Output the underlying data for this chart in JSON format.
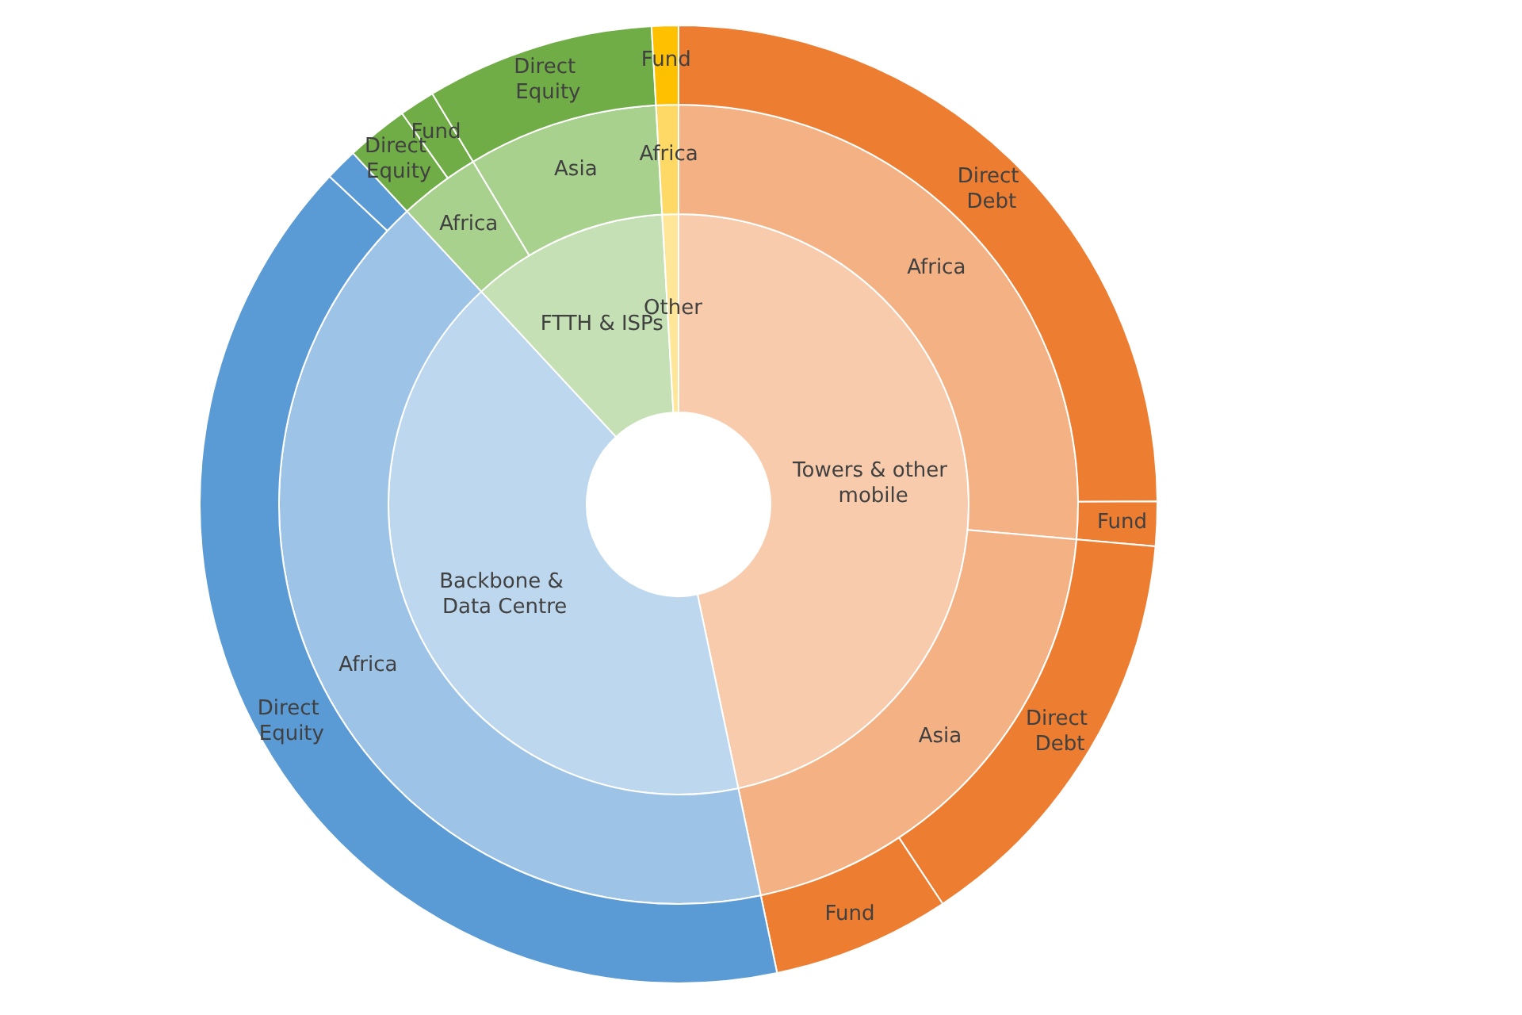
{
  "chart_data": [
    {
      "type": "donut",
      "categories": [
        "Towers & other mobile",
        "Backbone & Data Centre",
        "FTTH & ISPs",
        "Other"
      ],
      "values": [
        46.7,
        41.4,
        11.0,
        0.9
      ],
      "colors": [
        "#f8cbad",
        "#bdd7ee",
        "#c5e0b4",
        "#ffe699"
      ]
    },
    {
      "type": "donut",
      "categories": [
        "Africa",
        "Asia",
        "Africa",
        "Africa",
        "Asia",
        "Africa"
      ],
      "values": [
        26.4,
        20.3,
        41.4,
        3.3,
        7.7,
        0.9
      ],
      "colors": [
        "#f4b183",
        "#f4b183",
        "#9dc3e6",
        "#a9d18e",
        "#a9d18e",
        "#ffd966"
      ]
    },
    {
      "type": "donut",
      "categories": [
        "Direct Debt",
        "Fund",
        "Direct Debt",
        "Fund",
        "Direct Equity",
        null,
        "Direct Equity",
        "Fund",
        "Direct Equity",
        "Fund"
      ],
      "values": [
        24.9,
        1.5,
        14.3,
        6.0,
        40.3,
        1.1,
        2.1,
        1.2,
        7.7,
        0.9
      ],
      "colors": [
        "#ed7d31",
        "#ed7d31",
        "#ed7d31",
        "#ed7d31",
        "#5b9bd5",
        "#5b9bd5",
        "#70ad47",
        "#70ad47",
        "#70ad47",
        "#ffc000"
      ]
    }
  ]
}
